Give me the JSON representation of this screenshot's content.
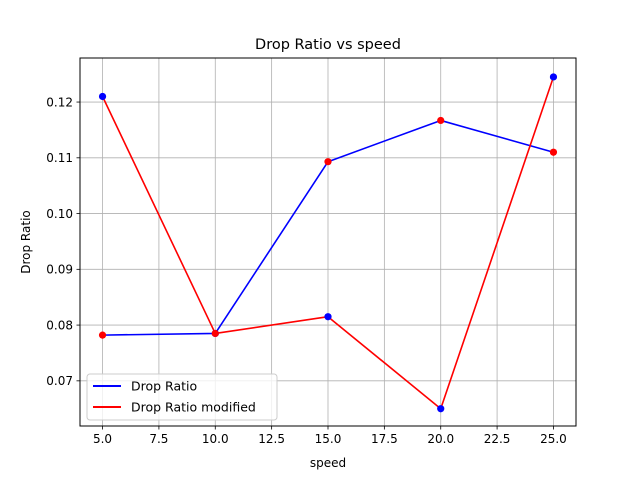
{
  "chart_data": {
    "type": "line",
    "title": "Drop Ratio vs speed",
    "xlabel": "speed",
    "ylabel": "Drop Ratio",
    "x": [
      5,
      10,
      15,
      20,
      25
    ],
    "xlim": [
      4.0,
      26.0
    ],
    "ylim": [
      0.0619,
      0.1279
    ],
    "xticks": [
      5.0,
      7.5,
      10.0,
      12.5,
      15.0,
      17.5,
      20.0,
      22.5,
      25.0
    ],
    "xtick_labels": [
      "5.0",
      "7.5",
      "10.0",
      "12.5",
      "15.0",
      "17.5",
      "20.0",
      "22.5",
      "25.0"
    ],
    "yticks": [
      0.07,
      0.08,
      0.09,
      0.1,
      0.11,
      0.12
    ],
    "ytick_labels": [
      "0.07",
      "0.08",
      "0.09",
      "0.10",
      "0.11",
      "0.12"
    ],
    "grid": true,
    "legend_position": "lower-left",
    "series": [
      {
        "name": "Drop Ratio",
        "color": "#0000ff",
        "values": [
          0.0782,
          0.0785,
          0.1093,
          0.1167,
          0.111
        ]
      },
      {
        "name": "Drop Ratio modified",
        "color": "#ff0000",
        "values": [
          0.121,
          0.0785,
          0.0815,
          0.065,
          0.1245
        ]
      }
    ],
    "scatter": [
      {
        "x": [
          5,
          10,
          15,
          20,
          25
        ],
        "values": [
          0.121,
          0.0785,
          0.0815,
          0.065,
          0.1245
        ],
        "color": "#0000ff"
      },
      {
        "x": [
          5,
          10,
          15,
          20,
          25
        ],
        "values": [
          0.0782,
          0.0785,
          0.1093,
          0.1167,
          0.111
        ],
        "color": "#ff0000"
      }
    ]
  }
}
